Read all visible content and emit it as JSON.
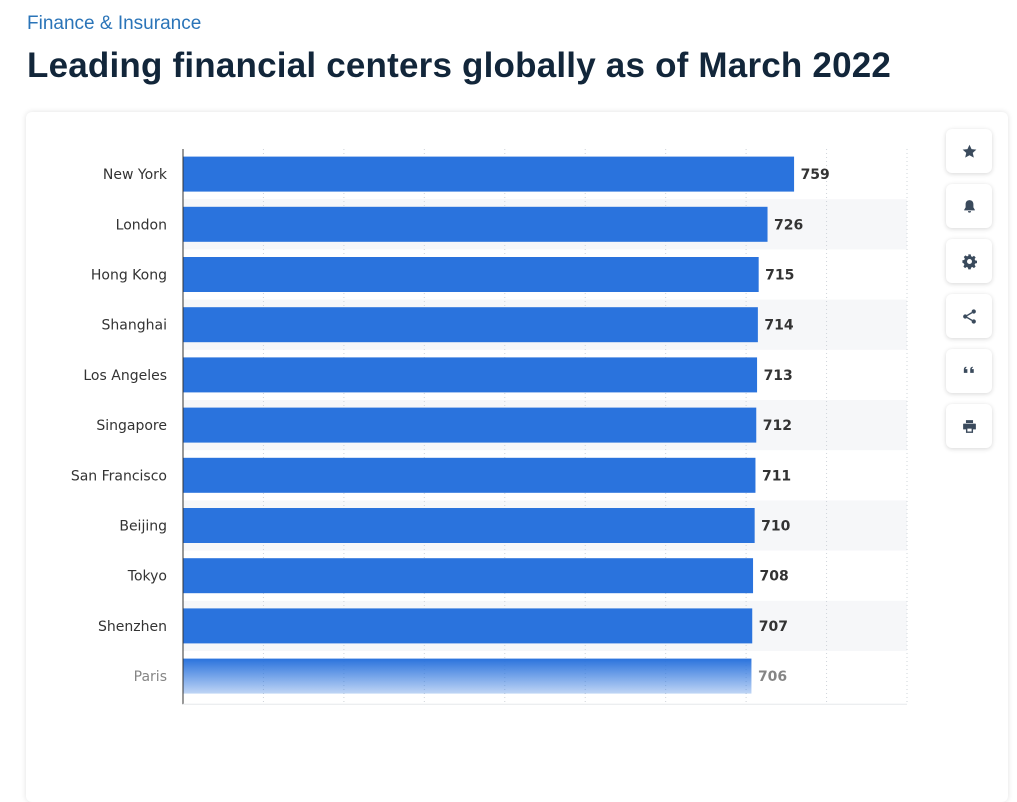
{
  "header": {
    "category": "Finance & Insurance",
    "title": "Leading financial centers globally as of March 2022"
  },
  "toolbar": {
    "buttons": [
      {
        "name": "favorite-button",
        "icon": "star-icon"
      },
      {
        "name": "notification-button",
        "icon": "bell-icon"
      },
      {
        "name": "settings-button",
        "icon": "gear-icon"
      },
      {
        "name": "share-button",
        "icon": "share-icon"
      },
      {
        "name": "cite-button",
        "icon": "quote-icon"
      },
      {
        "name": "print-button",
        "icon": "printer-icon"
      }
    ]
  },
  "colors": {
    "bar": "#2a73dd",
    "band": "#f6f7f9",
    "grid": "#cfd4da",
    "icon": "#3a4a5c"
  },
  "chart_data": {
    "type": "bar",
    "orientation": "horizontal",
    "categories": [
      "New York",
      "London",
      "Hong Kong",
      "Shanghai",
      "Los Angeles",
      "Singapore",
      "San Francisco",
      "Beijing",
      "Tokyo",
      "Shenzhen",
      "Paris"
    ],
    "values": [
      759,
      726,
      715,
      714,
      713,
      712,
      711,
      710,
      708,
      707,
      706
    ],
    "title": "",
    "xlabel": "",
    "ylabel": "",
    "xlim": [
      0,
      900
    ],
    "grid": true,
    "legend": "none"
  }
}
